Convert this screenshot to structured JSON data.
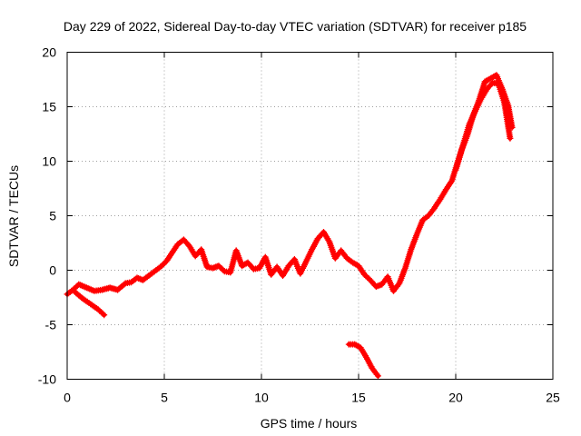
{
  "chart_data": {
    "type": "scatter",
    "title": "Day 229 of 2022, Sidereal Day-to-day VTEC variation (SDTVAR) for receiver p185",
    "xlabel": "GPS time / hours",
    "ylabel": "SDTVAR / TECUs",
    "xlim": [
      0,
      25
    ],
    "ylim": [
      -10,
      20
    ],
    "xticks": [
      0,
      5,
      10,
      15,
      20,
      25
    ],
    "yticks": [
      -10,
      -5,
      0,
      5,
      10,
      15,
      20
    ],
    "grid": true,
    "series_color": "#ff0000",
    "series": [
      {
        "name": "p185 main",
        "x": [
          0,
          0.3,
          0.6,
          1.0,
          1.4,
          1.8,
          2.2,
          2.6,
          3.0,
          3.3,
          3.6,
          3.9,
          4.2,
          4.5,
          4.8,
          5.1,
          5.4,
          5.7,
          6.0,
          6.3,
          6.6,
          6.9,
          7.2,
          7.5,
          7.8,
          8.1,
          8.4,
          8.7,
          9.0,
          9.3,
          9.6,
          9.9,
          10.2,
          10.5,
          10.8,
          11.1,
          11.4,
          11.7,
          12.0,
          12.3,
          12.6,
          12.9,
          13.2,
          13.5,
          13.8,
          14.1,
          14.4,
          14.7,
          15.0,
          15.3,
          15.6,
          15.9,
          16.2,
          16.5,
          16.8,
          17.1,
          17.4,
          17.7,
          18.0,
          18.3,
          18.6,
          18.9,
          19.2,
          19.5,
          19.8,
          20.1,
          20.4,
          20.7,
          21.0,
          21.3,
          21.6,
          21.9,
          22.2,
          22.5,
          22.8
        ],
        "y": [
          -2.2,
          -1.8,
          -1.3,
          -1.6,
          -1.9,
          -1.8,
          -1.6,
          -1.8,
          -1.2,
          -1.1,
          -0.7,
          -0.9,
          -0.5,
          -0.1,
          0.3,
          0.8,
          1.6,
          2.4,
          2.8,
          2.2,
          1.3,
          1.9,
          0.3,
          0.2,
          0.4,
          -0.1,
          -0.2,
          1.8,
          0.4,
          0.7,
          0.1,
          0.2,
          1.2,
          -0.4,
          0.3,
          -0.5,
          0.4,
          1.0,
          -0.3,
          0.8,
          1.9,
          2.9,
          3.5,
          2.6,
          1.1,
          1.8,
          1.1,
          0.7,
          0.4,
          -0.4,
          -0.9,
          -1.5,
          -1.3,
          -0.6,
          -1.9,
          -1.2,
          0.2,
          1.9,
          3.3,
          4.6,
          5.0,
          5.7,
          6.5,
          7.4,
          8.2,
          9.9,
          11.6,
          13.4,
          14.6,
          15.7,
          16.6,
          17.2,
          17.1,
          15.4,
          12.1
        ]
      },
      {
        "name": "p185 upper branch",
        "x": [
          20.0,
          20.3,
          20.6,
          20.9,
          21.2,
          21.5,
          21.8,
          22.1,
          22.4,
          22.7,
          22.9
        ],
        "y": [
          9.2,
          11.0,
          12.4,
          14.2,
          15.6,
          17.3,
          17.6,
          17.9,
          16.6,
          15.1,
          13.1
        ]
      },
      {
        "name": "p185 early tail",
        "x": [
          0.4,
          0.8,
          1.2,
          1.6,
          1.9
        ],
        "y": [
          -2.0,
          -2.6,
          -3.1,
          -3.6,
          -4.1
        ]
      },
      {
        "name": "p185 arc 2",
        "x": [
          14.5,
          14.8,
          15.1,
          15.4,
          15.7,
          16.0
        ],
        "y": [
          -6.8,
          -6.8,
          -7.1,
          -8.0,
          -9.0,
          -9.7
        ]
      }
    ]
  }
}
